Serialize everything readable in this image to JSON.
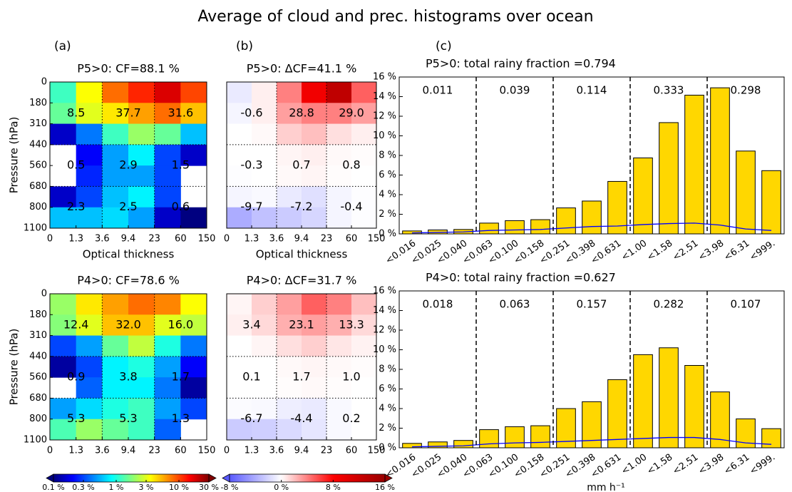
{
  "title": "Average of cloud and prec. histograms  over ocean",
  "panel_labels": [
    "(a)",
    "(b)",
    "(c)"
  ],
  "chart_data": [
    {
      "type": "heatmap",
      "title": "P5>0: CF=88.1 %",
      "x_edges": [
        0,
        1.3,
        3.6,
        9.4,
        23,
        60,
        150
      ],
      "y_edges": [
        0,
        180,
        310,
        440,
        560,
        680,
        800,
        1100
      ],
      "xlabel": "Optical thickness",
      "ylabel": "Pressure (hPa)",
      "colormap": "jet",
      "log_scale": true,
      "zlim": [
        0.1,
        30
      ],
      "z": [
        [
          1.2,
          3.5,
          8,
          12,
          18,
          10
        ],
        [
          1.5,
          3,
          4,
          6,
          8,
          5
        ],
        [
          0.15,
          0.4,
          1.2,
          2,
          1.5,
          0.6
        ],
        [
          null,
          0.2,
          0.5,
          0.8,
          0.3,
          0.15
        ],
        [
          null,
          0.25,
          0.5,
          0.5,
          0.3,
          null
        ],
        [
          0.15,
          0.3,
          0.6,
          0.8,
          0.3,
          null
        ],
        [
          0.6,
          0.6,
          0.7,
          0.5,
          0.15,
          0.1
        ]
      ],
      "block_values": [
        [
          8.5,
          37.7,
          31.6
        ],
        [
          0.5,
          2.9,
          1.5
        ],
        [
          2.3,
          2.5,
          0.6
        ]
      ],
      "block_value_labels": [
        [
          "8.5",
          "37.7",
          "31.6"
        ],
        [
          "0.5",
          "2.9",
          "1.5"
        ],
        [
          "2.3",
          "2.5",
          "0.6"
        ]
      ]
    },
    {
      "type": "heatmap",
      "title": "P5>0: ΔCF=41.1 %",
      "x_edges": [
        0,
        1.3,
        3.6,
        9.4,
        23,
        60,
        150
      ],
      "xlabel": "Optical thickness",
      "colormap": "diverging",
      "log_scale": false,
      "zlim": [
        -8,
        16
      ],
      "z": [
        [
          -1,
          0.5,
          4,
          9,
          13,
          5
        ],
        [
          -0.5,
          0.5,
          3,
          4,
          4,
          3
        ],
        [
          0,
          0.2,
          1.5,
          2,
          1,
          0.5
        ],
        [
          0,
          0,
          0.3,
          0.5,
          0.2,
          0.1
        ],
        [
          -0.1,
          0,
          0.2,
          0.3,
          0.1,
          0
        ],
        [
          -0.5,
          -0.3,
          -1,
          -1.5,
          -0.5,
          -0.1
        ],
        [
          -4,
          -3,
          -2.5,
          -2,
          -0.5,
          -0.1
        ]
      ],
      "block_values": [
        [
          -0.6,
          28.8,
          29.0
        ],
        [
          -0.3,
          0.7,
          0.8
        ],
        [
          -9.7,
          -7.2,
          -0.4
        ]
      ],
      "block_value_labels": [
        [
          "-0.6",
          "28.8",
          "29.0"
        ],
        [
          "-0.3",
          "0.7",
          "0.8"
        ],
        [
          "-9.7",
          "-7.2",
          "-0.4"
        ]
      ]
    },
    {
      "type": "bar",
      "title": "P5>0:  total rainy fraction =0.794",
      "categories": [
        "<0.016",
        "<0.025",
        "<0.040",
        "<0.063",
        "<0.100",
        "<0.158",
        "<0.251",
        "<0.398",
        "<0.631",
        "<1.00",
        "<1.58",
        "<2.51",
        "<3.98",
        "<6.31",
        "<999."
      ],
      "series": [
        {
          "type": "bar",
          "color": "#ffd700",
          "values": [
            0.3,
            0.4,
            0.45,
            1.1,
            1.35,
            1.45,
            2.65,
            3.35,
            5.35,
            7.75,
            11.35,
            14.15,
            14.9,
            8.45,
            6.45
          ]
        },
        {
          "type": "line",
          "color": "#0000ff",
          "values": [
            0.1,
            0.15,
            0.2,
            0.35,
            0.4,
            0.45,
            0.6,
            0.75,
            0.8,
            0.95,
            1.05,
            1.1,
            0.9,
            0.5,
            0.35
          ]
        }
      ],
      "ylim": [
        0,
        16
      ],
      "yticks": [
        {
          "value": 0,
          "label": "0 %"
        },
        {
          "value": 2,
          "label": "2 %"
        },
        {
          "value": 4,
          "label": "4 %"
        },
        {
          "value": 6,
          "label": "6 %"
        },
        {
          "value": 8,
          "label": "8 %"
        },
        {
          "value": 10,
          "label": "10 %"
        },
        {
          "value": 12,
          "label": "12 %"
        },
        {
          "value": 14,
          "label": "14 %"
        },
        {
          "value": 16,
          "label": "16 %"
        }
      ],
      "group_fractions": [
        0.011,
        0.039,
        0.114,
        0.333,
        0.298
      ]
    },
    {
      "type": "heatmap",
      "title": "P4>0: CF=78.6 %",
      "x_edges": [
        0,
        1.3,
        3.6,
        9.4,
        23,
        60,
        150
      ],
      "y_edges": [
        0,
        180,
        310,
        440,
        560,
        680,
        800,
        1100
      ],
      "ylabel": "Pressure (hPa)",
      "colormap": "jet",
      "log_scale": true,
      "zlim": [
        0.1,
        30
      ],
      "z": [
        [
          2,
          4,
          6,
          8,
          7,
          3.5
        ],
        [
          1.8,
          3,
          5,
          5,
          3,
          2.5
        ],
        [
          0.3,
          0.5,
          1.5,
          2.5,
          1,
          0.4
        ],
        [
          0.12,
          0.3,
          0.8,
          1,
          0.5,
          0.2
        ],
        [
          null,
          0.35,
          0.8,
          0.8,
          0.4,
          0.12
        ],
        [
          0.5,
          0.7,
          1,
          1.2,
          0.5,
          0.3
        ],
        [
          1.3,
          2,
          1.5,
          1.2,
          0.35,
          null
        ]
      ],
      "block_values": [
        [
          12.4,
          32.0,
          16.0
        ],
        [
          0.9,
          3.8,
          1.7
        ],
        [
          5.3,
          5.3,
          1.3
        ]
      ],
      "block_value_labels": [
        [
          "12.4",
          "32.0",
          "16.0"
        ],
        [
          "0.9",
          "3.8",
          "1.7"
        ],
        [
          "5.3",
          "5.3",
          "1.3"
        ]
      ]
    },
    {
      "type": "heatmap",
      "title": "P4>0: ΔCF=31.7 %",
      "x_edges": [
        0,
        1.3,
        3.6,
        9.4,
        23,
        60,
        150
      ],
      "colormap": "diverging",
      "log_scale": false,
      "zlim": [
        -8,
        16
      ],
      "z": [
        [
          0.3,
          1.5,
          3,
          5,
          4,
          2
        ],
        [
          0.5,
          1.2,
          2.5,
          3,
          2.5,
          1.2
        ],
        [
          0,
          0.3,
          1,
          1.5,
          0.8,
          0.4
        ],
        [
          0,
          0,
          0.2,
          0.3,
          0.2,
          0.1
        ],
        [
          0,
          0,
          0.1,
          0.2,
          0.1,
          0
        ],
        [
          -0.2,
          -0.3,
          -0.8,
          -1,
          -0.3,
          0
        ],
        [
          -2.5,
          -2.3,
          -1.8,
          -1.2,
          -0.3,
          0
        ]
      ],
      "block_values": [
        [
          3.4,
          23.1,
          13.3
        ],
        [
          0.1,
          1.7,
          1.0
        ],
        [
          -6.7,
          -4.4,
          0.2
        ]
      ],
      "block_value_labels": [
        [
          "3.4",
          "23.1",
          "13.3"
        ],
        [
          "0.1",
          "1.7",
          "1.0"
        ],
        [
          "-6.7",
          "-4.4",
          "0.2"
        ]
      ]
    },
    {
      "type": "bar",
      "title": "P4>0:  total rainy fraction =0.627",
      "categories": [
        "<0.016",
        "<0.025",
        "<0.040",
        "<0.063",
        "<0.100",
        "<0.158",
        "<0.251",
        "<0.398",
        "<0.631",
        "<1.00",
        "<1.58",
        "<2.51",
        "<3.98",
        "<6.31",
        "<999."
      ],
      "series": [
        {
          "type": "bar",
          "color": "#ffd700",
          "values": [
            0.45,
            0.6,
            0.75,
            1.85,
            2.15,
            2.25,
            4.0,
            4.7,
            6.95,
            9.5,
            10.2,
            8.4,
            5.7,
            2.95,
            1.95
          ]
        },
        {
          "type": "line",
          "color": "#0000ff",
          "values": [
            0.1,
            0.15,
            0.2,
            0.4,
            0.5,
            0.55,
            0.65,
            0.75,
            0.85,
            0.95,
            1.05,
            1.05,
            0.85,
            0.5,
            0.35
          ]
        }
      ],
      "ylim": [
        0,
        16
      ],
      "yticks": [
        {
          "value": 0,
          "label": "0 %"
        },
        {
          "value": 2,
          "label": "2 %"
        },
        {
          "value": 4,
          "label": "4 %"
        },
        {
          "value": 6,
          "label": "6 %"
        },
        {
          "value": 8,
          "label": "8 %"
        },
        {
          "value": 10,
          "label": "10 %"
        },
        {
          "value": 12,
          "label": "12 %"
        },
        {
          "value": 14,
          "label": "14 %"
        },
        {
          "value": 16,
          "label": "16 %"
        }
      ],
      "group_fractions": [
        0.018,
        0.063,
        0.157,
        0.282,
        0.107
      ],
      "xlabel": "mm h⁻¹"
    }
  ],
  "colorbars": [
    {
      "colormap": "jet",
      "log_scale": true,
      "zlim": [
        0.1,
        30
      ],
      "ticks": [
        {
          "value": 0.1,
          "label": "0.1 %"
        },
        {
          "value": 0.3,
          "label": "0.3 %"
        },
        {
          "value": 1,
          "label": "1 %"
        },
        {
          "value": 3,
          "label": "3 %"
        },
        {
          "value": 10,
          "label": "10 %"
        },
        {
          "value": 30,
          "label": "30 %"
        }
      ]
    },
    {
      "colormap": "diverging",
      "log_scale": false,
      "zlim": [
        -8,
        16
      ],
      "ticks": [
        {
          "value": -8,
          "label": "-8 %"
        },
        {
          "value": 0,
          "label": "0 %"
        },
        {
          "value": 8,
          "label": "8 %"
        },
        {
          "value": 16,
          "label": "16 %"
        }
      ]
    }
  ]
}
